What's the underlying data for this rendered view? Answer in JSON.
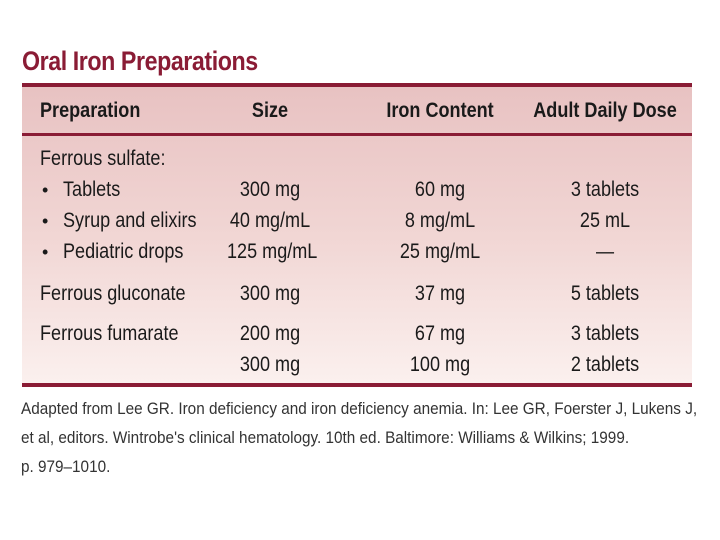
{
  "title": "Oral Iron Preparations",
  "headers": {
    "preparation": "Preparation",
    "size": "Size",
    "iron": "Iron Content",
    "dose": "Adult Daily Dose"
  },
  "rows": [
    {
      "prep": "Ferrous sulfate:",
      "size": "",
      "iron": "",
      "dose": ""
    },
    {
      "prep": "Tablets",
      "size": "300 mg",
      "iron": "60 mg",
      "dose": "3 tablets"
    },
    {
      "prep": "Syrup and elixirs",
      "size": "40 mg/mL",
      "iron": "8 mg/mL",
      "dose": "25 mL"
    },
    {
      "prep": "Pediatric drops",
      "size": "125 mg/mL",
      "iron": "25 mg/mL",
      "dose": "—"
    },
    {
      "prep": "Ferrous gluconate",
      "size": "300 mg",
      "iron": "37 mg",
      "dose": "5 tablets"
    },
    {
      "prep": "Ferrous fumarate",
      "size": "200 mg",
      "iron": "67 mg",
      "dose": "3 tablets"
    },
    {
      "prep": "",
      "size": "300 mg",
      "iron": "100 mg",
      "dose": "2 tablets"
    }
  ],
  "bullet_glyph": "•",
  "caption": [
    "Adapted from Lee GR. Iron deficiency and iron deficiency anemia. In: Lee GR, Foerster J, Lukens J,",
    "et al, editors. Wintrobe's clinical hematology. 10th ed. Baltimore: Williams & Wilkins; 1999.",
    "p. 979–1010."
  ]
}
